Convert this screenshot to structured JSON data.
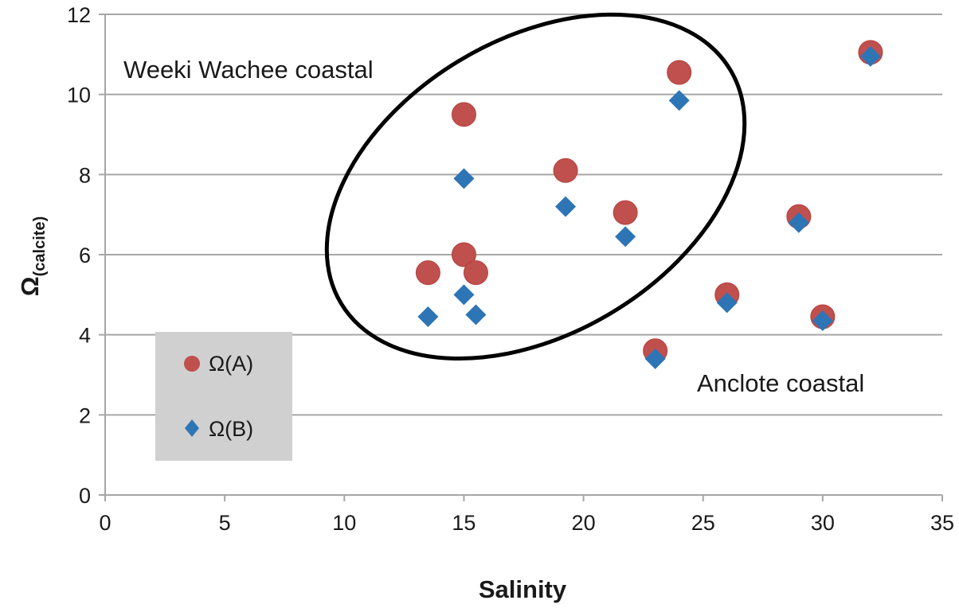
{
  "chart_data": {
    "type": "scatter",
    "xlabel": "Salinity",
    "ylabel_main": "Ω",
    "ylabel_sub": "(calcite)",
    "xlim": [
      0,
      35
    ],
    "ylim": [
      0,
      12
    ],
    "xticks": [
      0,
      5,
      10,
      15,
      20,
      25,
      30,
      35
    ],
    "yticks": [
      0,
      2,
      4,
      6,
      8,
      10,
      12
    ],
    "grid": "horizontal",
    "legend_position": "lower-left",
    "series": [
      {
        "name": "Ω(A)",
        "marker": "circle",
        "color": "#c0504d",
        "points": [
          {
            "x": 13.5,
            "y": 5.55
          },
          {
            "x": 15.0,
            "y": 9.5
          },
          {
            "x": 15.0,
            "y": 6.0
          },
          {
            "x": 15.5,
            "y": 5.55
          },
          {
            "x": 19.25,
            "y": 8.1
          },
          {
            "x": 21.75,
            "y": 7.05
          },
          {
            "x": 24.0,
            "y": 10.55
          },
          {
            "x": 23.0,
            "y": 3.6
          },
          {
            "x": 26.0,
            "y": 5.0
          },
          {
            "x": 29.0,
            "y": 6.95
          },
          {
            "x": 30.0,
            "y": 4.45
          },
          {
            "x": 32.0,
            "y": 11.05
          }
        ]
      },
      {
        "name": "Ω(B)",
        "marker": "diamond",
        "color": "#2e75b6",
        "points": [
          {
            "x": 13.5,
            "y": 4.45
          },
          {
            "x": 15.0,
            "y": 7.9
          },
          {
            "x": 15.0,
            "y": 5.0
          },
          {
            "x": 15.5,
            "y": 4.5
          },
          {
            "x": 19.25,
            "y": 7.2
          },
          {
            "x": 21.75,
            "y": 6.45
          },
          {
            "x": 24.0,
            "y": 9.85
          },
          {
            "x": 23.0,
            "y": 3.4
          },
          {
            "x": 26.0,
            "y": 4.8
          },
          {
            "x": 29.0,
            "y": 6.8
          },
          {
            "x": 30.0,
            "y": 4.35
          },
          {
            "x": 32.0,
            "y": 10.95
          }
        ]
      }
    ],
    "annotations": [
      {
        "text": "Weeki Wachee coastal"
      },
      {
        "text": "Anclote coastal"
      }
    ],
    "highlight_ellipse": {
      "label": "Weeki Wachee coastal group",
      "center_x": 18.0,
      "center_y": 7.7,
      "shape": "rotated ellipse"
    }
  },
  "colors": {
    "grid": "#a6a6a6",
    "axis": "#a6a6a6",
    "legend_bg": "#d0d0d0",
    "ellipse": "#000000"
  }
}
